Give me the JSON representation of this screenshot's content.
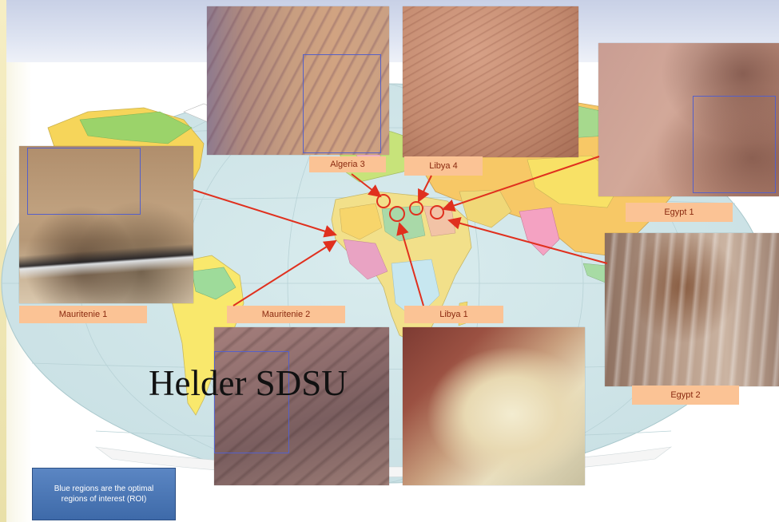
{
  "watermark": "Helder SDSU",
  "note": "Blue regions are the optimal regions of interest (ROI)",
  "sites": {
    "algeria3": {
      "label": "Algeria 3"
    },
    "libya4": {
      "label": "Libya 4"
    },
    "egypt1": {
      "label": "Egypt 1"
    },
    "egypt2": {
      "label": "Egypt 2"
    },
    "mauritania1": {
      "label": "Mauritenie 1"
    },
    "mauritania2": {
      "label": "Mauritenie 2"
    },
    "libya1": {
      "label": "Libya 1"
    }
  },
  "colors": {
    "arrow": "#e0301e",
    "roi": "#5560c8",
    "label_bg": "#fbc395",
    "label_text": "#8a2a10",
    "ocean": "#d5e8ea",
    "note_bg": "#4a76b5"
  }
}
